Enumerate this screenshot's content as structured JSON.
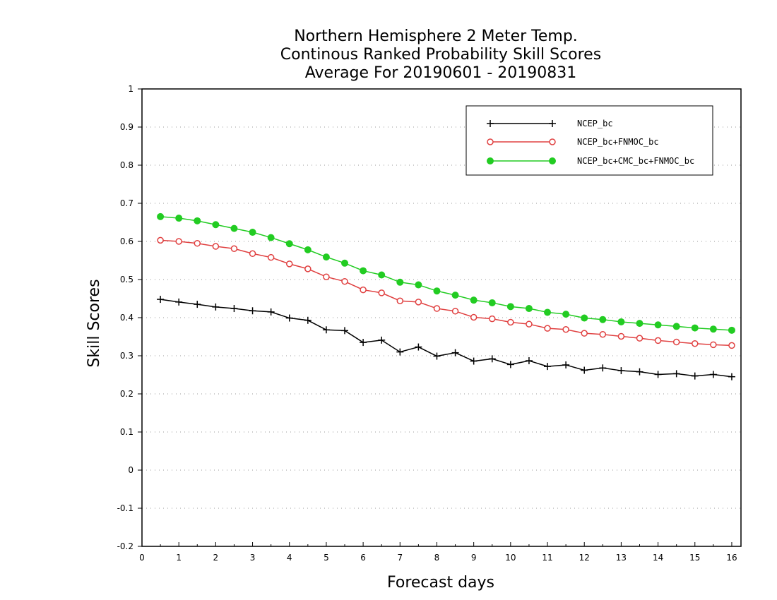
{
  "chart_data": {
    "type": "line",
    "title_lines": [
      "Northern Hemisphere 2 Meter Temp.",
      "Continous Ranked Probability Skill Scores",
      "Average For 20190601 - 20190831"
    ],
    "xlabel": "Forecast days",
    "ylabel": "Skill Scores",
    "xlim": [
      0,
      16.25
    ],
    "ylim": [
      -0.2,
      1
    ],
    "x_ticks": [
      "0",
      "1",
      "2",
      "3",
      "4",
      "5",
      "6",
      "7",
      "8",
      "9",
      "10",
      "11",
      "12",
      "13",
      "14",
      "15",
      "16"
    ],
    "y_ticks": [
      "1",
      "0.9",
      "0.8",
      "0.7",
      "0.6",
      "0.5",
      "0.4",
      "0.3",
      "0.2",
      "0.1",
      "0",
      "-0.1",
      "-0.2"
    ],
    "grid": "horizontal dotted",
    "legend_position": "top-right",
    "x": [
      0.5,
      1,
      1.5,
      2,
      2.5,
      3,
      3.5,
      4,
      4.5,
      5,
      5.5,
      6,
      6.5,
      7,
      7.5,
      8,
      8.5,
      9,
      9.5,
      10,
      10.5,
      11,
      11.5,
      12,
      12.5,
      13,
      13.5,
      14,
      14.5,
      15,
      15.5,
      16
    ],
    "series": [
      {
        "name": "NCEP_bc",
        "color": "#000000",
        "marker": "plus",
        "values": [
          0.448,
          0.441,
          0.435,
          0.428,
          0.424,
          0.418,
          0.415,
          0.399,
          0.393,
          0.368,
          0.366,
          0.335,
          0.341,
          0.31,
          0.323,
          0.299,
          0.308,
          0.286,
          0.292,
          0.277,
          0.287,
          0.272,
          0.276,
          0.262,
          0.268,
          0.261,
          0.258,
          0.251,
          0.253,
          0.247,
          0.251,
          0.245
        ]
      },
      {
        "name": "NCEP_bc+FNMOC_bc",
        "color": "#e04040",
        "marker": "open-circle",
        "values": [
          0.603,
          0.6,
          0.595,
          0.587,
          0.581,
          0.568,
          0.558,
          0.541,
          0.528,
          0.507,
          0.495,
          0.473,
          0.465,
          0.444,
          0.441,
          0.424,
          0.417,
          0.401,
          0.397,
          0.388,
          0.383,
          0.372,
          0.369,
          0.359,
          0.356,
          0.351,
          0.346,
          0.34,
          0.336,
          0.332,
          0.329,
          0.327
        ]
      },
      {
        "name": "NCEP_bc+CMC_bc+FNMOC_bc",
        "color": "#22cc22",
        "marker": "filled-circle",
        "values": [
          0.665,
          0.661,
          0.654,
          0.644,
          0.634,
          0.624,
          0.61,
          0.594,
          0.578,
          0.559,
          0.543,
          0.523,
          0.512,
          0.493,
          0.486,
          0.47,
          0.459,
          0.446,
          0.439,
          0.429,
          0.424,
          0.414,
          0.409,
          0.399,
          0.395,
          0.389,
          0.385,
          0.381,
          0.377,
          0.373,
          0.37,
          0.367
        ]
      }
    ]
  }
}
